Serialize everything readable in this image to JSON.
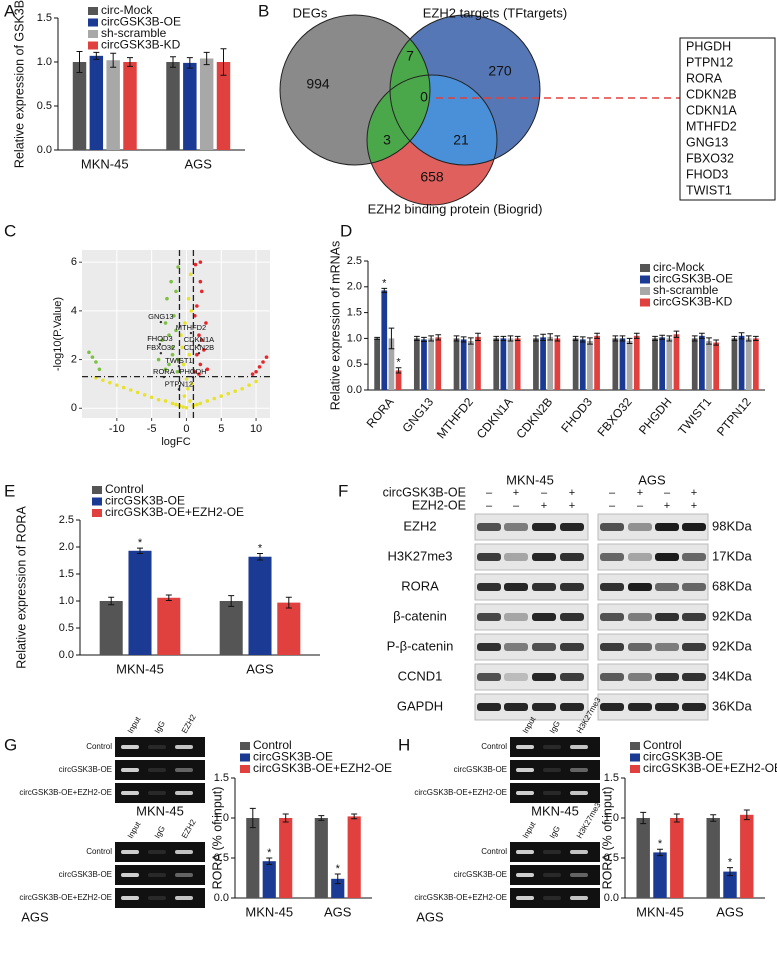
{
  "panel_labels": [
    "A",
    "B",
    "C",
    "D",
    "E",
    "F",
    "G",
    "H"
  ],
  "chart_data": [
    {
      "type": "bar",
      "ylabel": "Relative expression of GSK3B",
      "categories": [
        "MKN-45",
        "AGS"
      ],
      "series": [
        {
          "name": "circ-Mock",
          "color": "#555555",
          "values": [
            1.0,
            1.0
          ],
          "errors": [
            0.12,
            0.06
          ]
        },
        {
          "name": "circGSK3B-OE",
          "color": "#1a3a94",
          "values": [
            1.07,
            0.99
          ],
          "errors": [
            0.04,
            0.06
          ]
        },
        {
          "name": "sh-scramble",
          "color": "#a8a8a8",
          "values": [
            1.02,
            1.04
          ],
          "errors": [
            0.08,
            0.07
          ]
        },
        {
          "name": "circGSK3B-KD",
          "color": "#e0413f",
          "values": [
            1.0,
            1.0
          ],
          "errors": [
            0.05,
            0.15
          ]
        }
      ],
      "ylim": [
        0,
        1.5
      ],
      "yticks": [
        {
          "value": 0,
          "label": "0.0"
        },
        0.5,
        {
          "value": 1,
          "label": "1.0"
        },
        1.5
      ],
      "legend": "upper left"
    },
    {
      "type": "scatter",
      "xlabel": "logFC",
      "ylabel": "-log10(P.Value)",
      "xlim": [
        -15,
        12
      ],
      "ylim": [
        -0.4,
        6.5
      ],
      "xticks": [
        -10,
        -5,
        0,
        5,
        10
      ],
      "yticks": [
        0,
        2,
        4,
        6
      ],
      "grid": true,
      "vlines": [
        -1,
        1
      ],
      "hlines": [
        1.3
      ],
      "series": [
        {
          "color": "#e8e22c",
          "x": [
            -13,
            -12,
            -11,
            -10,
            -9,
            -8,
            -7,
            -6,
            -5,
            -4,
            -3,
            -2,
            -1.5,
            -1,
            -0.5,
            -0.3,
            0,
            0.2,
            0.5,
            0.8,
            1,
            1.5,
            2,
            3,
            4,
            5,
            6,
            7,
            8,
            9,
            10,
            -0.6,
            -0.2,
            0.3,
            0.6,
            -0.4,
            0.4,
            0,
            -0.8,
            0.7
          ],
          "values": [
            1.25,
            1.15,
            1.05,
            0.95,
            0.85,
            0.75,
            0.65,
            0.55,
            0.45,
            0.35,
            0.3,
            0.2,
            0.15,
            0.1,
            0.05,
            0.5,
            0.02,
            0.8,
            0.3,
            1.0,
            0.1,
            0.15,
            0.2,
            0.3,
            0.4,
            0.5,
            0.6,
            0.7,
            0.8,
            0.95,
            1.1,
            2.5,
            3.5,
            4.5,
            5.5,
            1.8,
            2.2,
            1.2,
            3.0,
            4.0
          ]
        },
        {
          "color": "#7cc043",
          "x": [
            -14,
            -13.5,
            -13,
            -12.5,
            -4,
            -3.5,
            -3,
            -2.8,
            -2.5,
            -2.2,
            -2,
            -1.8,
            -1.5,
            -1.3,
            -1.2,
            -3,
            -2.5,
            -2,
            -1.5,
            -1.2
          ],
          "values": [
            2.3,
            2.1,
            1.9,
            1.6,
            2.0,
            2.8,
            3.5,
            4.5,
            1.8,
            5.2,
            2.5,
            3.8,
            4.8,
            1.5,
            5.8,
            1.6,
            3.0,
            2.2,
            3.2,
            2.0
          ]
        },
        {
          "color": "#e5262b",
          "x": [
            1.2,
            1.3,
            1.5,
            1.8,
            2,
            2.2,
            2.5,
            2.8,
            3,
            1.5,
            2,
            1.2,
            1.8,
            2.2,
            9.5,
            10,
            10.5,
            11,
            11.5,
            2
          ],
          "values": [
            1.5,
            5.9,
            4.2,
            3.0,
            1.8,
            4.8,
            2.4,
            3.5,
            1.6,
            2.2,
            5.2,
            3.8,
            1.4,
            2.8,
            1.4,
            1.5,
            1.7,
            1.9,
            2.1,
            6.0
          ]
        },
        {
          "color": "#333333",
          "x": [
            -3.67,
            0.65,
            -3.81,
            1.8,
            -3.67,
            1.8,
            -1.08,
            -3.24,
            0.94,
            -1.08
          ],
          "values": [
            3.54,
            3.09,
            2.63,
            2.59,
            2.26,
            2.26,
            1.73,
            1.28,
            1.28,
            0.78
          ],
          "labels": [
            "GNG13",
            "MTHFD2",
            "FHOD3",
            "CDKN1A",
            "FBXO32",
            "CDKN2B",
            "TWIST1",
            "RORA",
            "PHGDH",
            "PTPN12"
          ]
        }
      ]
    },
    {
      "type": "bar",
      "ylabel": "Relative expression of mRNAs",
      "categories": [
        "RORA",
        "GNG13",
        "MTHFD2",
        "CDKN1A",
        "CDKN2B",
        "FHOD3",
        "FBXO32",
        "PHGDH",
        "TWIST1",
        "PTPN12"
      ],
      "series": [
        {
          "name": "circ-Mock",
          "color": "#555555",
          "values": [
            1.0,
            1.0,
            1.0,
            1.0,
            1.0,
            1.0,
            1.0,
            1.0,
            1.0,
            1.0
          ],
          "errors": [
            0.02,
            0.04,
            0.05,
            0.04,
            0.05,
            0.04,
            0.05,
            0.04,
            0.05,
            0.04
          ]
        },
        {
          "name": "circGSK3B-OE",
          "color": "#1a3a94",
          "values": [
            1.93,
            0.98,
            0.98,
            1.0,
            1.02,
            0.98,
            1.0,
            1.02,
            1.05,
            1.05
          ],
          "errors": [
            0.04,
            0.04,
            0.05,
            0.04,
            0.06,
            0.05,
            0.05,
            0.04,
            0.05,
            0.06
          ],
          "annotations": [
            "*",
            null,
            null,
            null,
            null,
            null,
            null,
            null,
            null,
            null
          ]
        },
        {
          "name": "sh-scramble",
          "color": "#a8a8a8",
          "values": [
            1.0,
            1.0,
            0.95,
            1.0,
            1.03,
            0.95,
            0.95,
            1.0,
            0.95,
            1.0
          ],
          "errors": [
            0.2,
            0.05,
            0.06,
            0.05,
            0.06,
            0.06,
            0.05,
            0.05,
            0.06,
            0.05
          ]
        },
        {
          "name": "circGSK3B-KD",
          "color": "#e0413f",
          "values": [
            0.38,
            1.02,
            1.03,
            1.0,
            1.0,
            1.05,
            1.05,
            1.08,
            0.92,
            1.0
          ],
          "errors": [
            0.05,
            0.05,
            0.07,
            0.04,
            0.05,
            0.05,
            0.05,
            0.06,
            0.05,
            0.04
          ],
          "annotations": [
            "*",
            null,
            null,
            null,
            null,
            null,
            null,
            null,
            null,
            null
          ]
        }
      ],
      "ylim": [
        0,
        2.5
      ],
      "yticks": [
        {
          "value": 0,
          "label": "0.0"
        },
        0.5,
        {
          "value": 1,
          "label": "1.0"
        },
        1.5,
        {
          "value": 2,
          "label": "2.0"
        },
        2.5
      ],
      "legend": "upper right"
    },
    {
      "type": "bar",
      "ylabel": "Relative expression of RORA",
      "categories": [
        "MKN-45",
        "AGS"
      ],
      "series": [
        {
          "name": "Control",
          "color": "#555555",
          "values": [
            1.0,
            1.0
          ],
          "errors": [
            0.07,
            0.1
          ]
        },
        {
          "name": "circGSK3B-OE",
          "color": "#1a3a94",
          "values": [
            1.93,
            1.82
          ],
          "errors": [
            0.05,
            0.06
          ],
          "annotations": [
            "*",
            "*"
          ]
        },
        {
          "name": "circGSK3B-OE+EZH2-OE",
          "color": "#e0413f",
          "values": [
            1.06,
            0.97
          ],
          "errors": [
            0.05,
            0.1
          ]
        }
      ],
      "ylim": [
        0,
        2.5
      ],
      "yticks": [
        {
          "value": 0,
          "label": "0.0"
        },
        0.5,
        {
          "value": 1,
          "label": "1.0"
        },
        1.5,
        {
          "value": 2,
          "label": "2.0"
        },
        2.5
      ],
      "legend": "upper left"
    },
    {
      "type": "bar",
      "ylabel": "RORA (% of input)",
      "categories": [
        "MKN-45",
        "AGS"
      ],
      "series": [
        {
          "name": "Control",
          "color": "#555555",
          "values": [
            1.0,
            1.0
          ],
          "errors": [
            0.12,
            0.03
          ]
        },
        {
          "name": "circGSK3B-OE",
          "color": "#1a3a94",
          "values": [
            0.46,
            0.24
          ],
          "errors": [
            0.04,
            0.06
          ],
          "annotations": [
            "*",
            "*"
          ]
        },
        {
          "name": "circGSK3B-OE+EZH2-OE",
          "color": "#e0413f",
          "values": [
            1.0,
            1.02
          ],
          "errors": [
            0.05,
            0.03
          ]
        }
      ],
      "ylim": [
        0,
        1.5
      ],
      "yticks": [
        {
          "value": 0,
          "label": "0.0"
        },
        0.5,
        {
          "value": 1,
          "label": "1.0"
        },
        1.5
      ],
      "legend": "upper left"
    },
    {
      "type": "bar",
      "ylabel": "RORA (% of input)",
      "categories": [
        "MKN-45",
        "AGS"
      ],
      "series": [
        {
          "name": "Control",
          "color": "#555555",
          "values": [
            1.0,
            1.0
          ],
          "errors": [
            0.07,
            0.04
          ]
        },
        {
          "name": "circGSK3B-OE",
          "color": "#1a3a94",
          "values": [
            0.57,
            0.33
          ],
          "errors": [
            0.04,
            0.05
          ],
          "annotations": [
            "*",
            "*"
          ]
        },
        {
          "name": "circGSK3B-OE+EZH2-OE",
          "color": "#e0413f",
          "values": [
            1.0,
            1.04
          ],
          "errors": [
            0.05,
            0.06
          ]
        }
      ],
      "ylim": [
        0,
        1.5
      ],
      "yticks": [
        {
          "value": 0,
          "label": "0.0"
        },
        0.5,
        {
          "value": 1,
          "label": "1.0"
        },
        1.5
      ],
      "legend": "upper left"
    }
  ],
  "venn": {
    "sets": [
      "DEGs",
      "EZH2 targets (TFtargets)",
      "EZH2 binding protein (Biogrid)"
    ],
    "regions": [
      994,
      7,
      270,
      3,
      0,
      21,
      658
    ],
    "genes": [
      "PHGDH",
      "PTPN12",
      "RORA",
      "CDKN2B",
      "CDKN1A",
      "MTHFD2",
      "GNG13",
      "FBXO32",
      "FHOD3",
      "TWIST1"
    ]
  },
  "blot": {
    "cell_lines": [
      "MKN-45",
      "AGS"
    ],
    "conditions": [
      {
        "label": "circGSK3B-OE",
        "signs": [
          "–",
          "+",
          "–",
          "+"
        ]
      },
      {
        "label": "EZH2-OE",
        "signs": [
          "–",
          "–",
          "+",
          "+"
        ]
      }
    ],
    "proteins": [
      {
        "name": "EZH2",
        "size": "98KDa"
      },
      {
        "name": "H3K27me3",
        "size": "17KDa"
      },
      {
        "name": "RORA",
        "size": "68KDa"
      },
      {
        "name": "β-catenin",
        "size": "92KDa"
      },
      {
        "name": "P-β-catenin",
        "size": "92KDa"
      },
      {
        "name": "CCND1",
        "size": "34KDa"
      },
      {
        "name": "GAPDH",
        "size": "36KDa"
      }
    ]
  },
  "chip": [
    {
      "lanes": [
        "Input",
        "IgG",
        "EZH2"
      ],
      "rows": [
        "Control",
        "circGSK3B-OE",
        "circGSK3B-OE+EZH2-OE"
      ],
      "cell_lines": [
        "MKN-45",
        "AGS"
      ]
    },
    {
      "lanes": [
        "Input",
        "IgG",
        "H3K27me3"
      ],
      "rows": [
        "Control",
        "circGSK3B-OE",
        "circGSK3B-OE+EZH2-OE"
      ],
      "cell_lines": [
        "MKN-45",
        "AGS"
      ]
    }
  ]
}
